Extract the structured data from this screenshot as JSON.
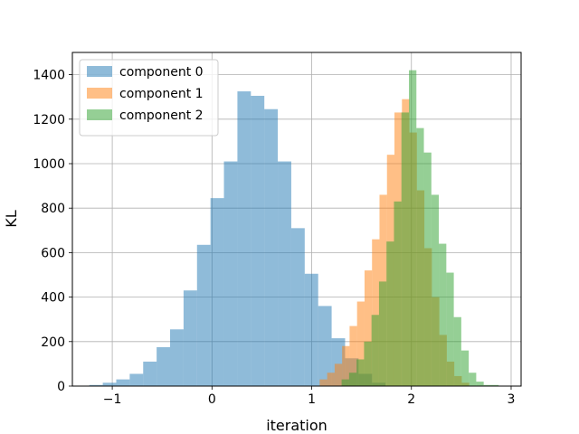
{
  "chart_data": {
    "type": "histogram",
    "title": "",
    "xlabel": "iteration",
    "ylabel": "KL",
    "xlim": [
      -1.4,
      3.1
    ],
    "ylim": [
      0,
      1500
    ],
    "xticks": [
      -1,
      0,
      1,
      2,
      3
    ],
    "xtick_labels": [
      "−1",
      "0",
      "1",
      "2",
      "3"
    ],
    "yticks": [
      0,
      200,
      400,
      600,
      800,
      1000,
      1200,
      1400
    ],
    "ytick_labels": [
      "0",
      "200",
      "400",
      "600",
      "800",
      "1000",
      "1200",
      "1400"
    ],
    "grid": true,
    "legend_position": "top-left",
    "colors": {
      "component_0": "#1f77b4",
      "component_1": "#ff7f0e",
      "component_2": "#2ca02c"
    },
    "bar_opacity": 0.5,
    "series": [
      {
        "name": "component 0",
        "bin_edges": [
          -1.23,
          -1.095,
          -0.96,
          -0.825,
          -0.69,
          -0.555,
          -0.42,
          -0.285,
          -0.15,
          -0.015,
          0.12,
          0.255,
          0.39,
          0.525,
          0.66,
          0.795,
          0.93,
          1.065,
          1.2,
          1.335,
          1.47,
          1.605,
          1.74
        ],
        "counts": [
          5,
          15,
          30,
          55,
          110,
          175,
          255,
          430,
          635,
          845,
          1010,
          1325,
          1305,
          1245,
          1010,
          710,
          505,
          360,
          215,
          125,
          55,
          15
        ]
      },
      {
        "name": "component 1",
        "bin_edges": [
          1.08,
          1.155,
          1.23,
          1.305,
          1.38,
          1.455,
          1.53,
          1.605,
          1.68,
          1.755,
          1.83,
          1.905,
          1.98,
          2.055,
          2.13,
          2.205,
          2.28,
          2.355,
          2.43,
          2.505,
          2.58
        ],
        "counts": [
          30,
          60,
          100,
          180,
          270,
          380,
          520,
          660,
          860,
          1040,
          1230,
          1290,
          1140,
          880,
          620,
          400,
          230,
          110,
          45,
          15
        ]
      },
      {
        "name": "component 2",
        "bin_edges": [
          1.3,
          1.375,
          1.45,
          1.525,
          1.6,
          1.675,
          1.75,
          1.825,
          1.9,
          1.975,
          2.05,
          2.125,
          2.2,
          2.275,
          2.35,
          2.425,
          2.5,
          2.575,
          2.65,
          2.725,
          2.8,
          2.875
        ],
        "counts": [
          30,
          60,
          120,
          200,
          320,
          470,
          650,
          830,
          1230,
          1420,
          1160,
          1050,
          860,
          640,
          510,
          310,
          160,
          60,
          20,
          5,
          5
        ]
      }
    ]
  }
}
